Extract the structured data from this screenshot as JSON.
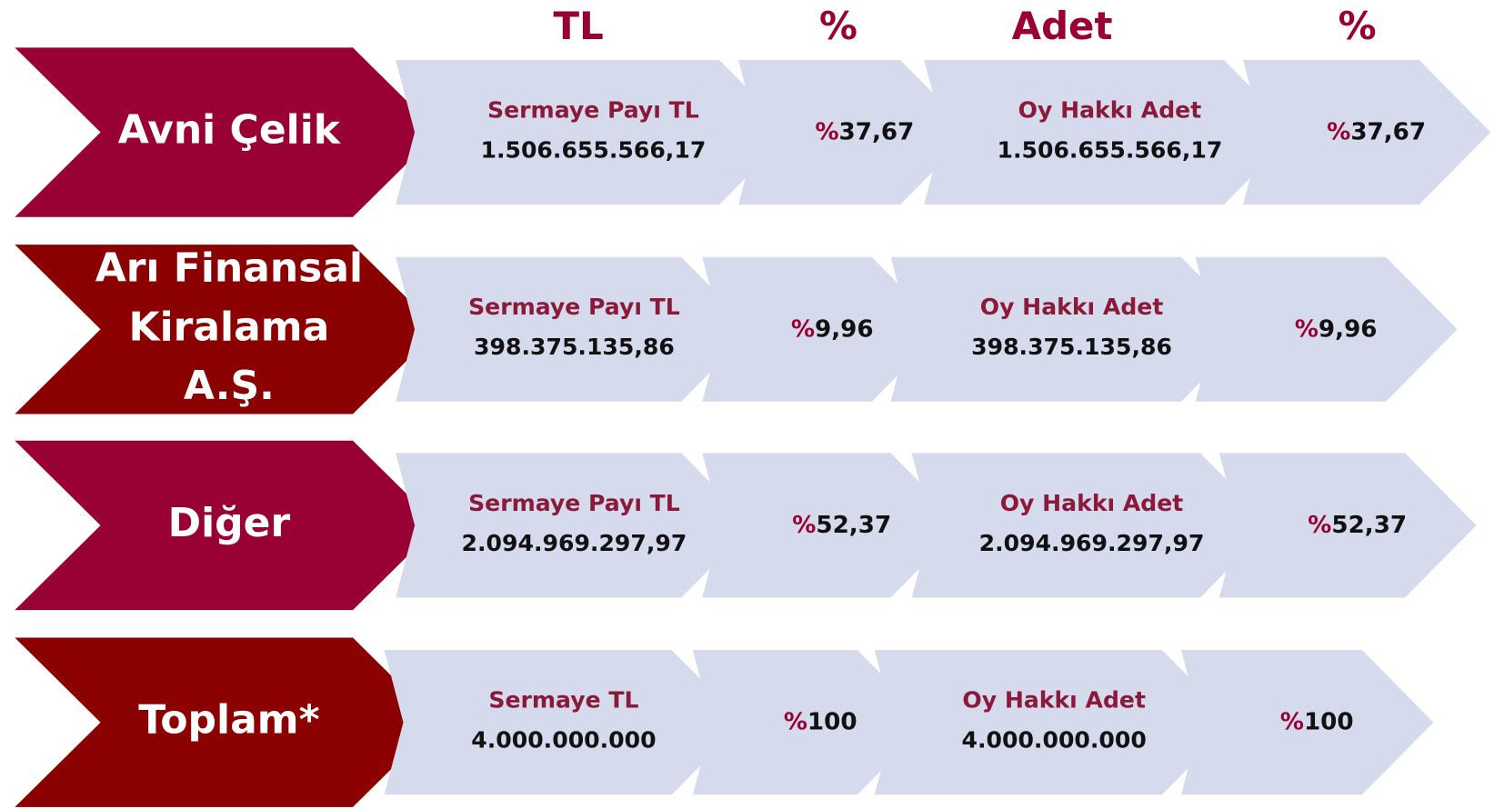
{
  "headers": [
    "TL",
    "%",
    "Adet",
    "%"
  ],
  "rows": [
    {
      "name": [
        "Avni Çelik"
      ],
      "capital_label": "Sermaye Payı TL",
      "capital_value": "1.506.655.566,17",
      "capital_percent": "%37,67",
      "vote_label": "Oy Hakkı Adet",
      "vote_value": "1.506.655.566,17",
      "vote_percent": "%37,67"
    },
    {
      "name": [
        "Arı Finansal",
        "Kiralama",
        "A.Ş."
      ],
      "capital_label": "Sermaye Payı TL",
      "capital_value": "398.375.135,86",
      "capital_percent": "%9,96",
      "vote_label": "Oy Hakkı Adet",
      "vote_value": "398.375.135,86",
      "vote_percent": "%9,96"
    },
    {
      "name": [
        "Diğer"
      ],
      "capital_label": "Sermaye Payı TL",
      "capital_value": "2.094.969.297,97",
      "capital_percent": "%52,37",
      "vote_label": "Oy Hakkı Adet",
      "vote_value": "2.094.969.297,97",
      "vote_percent": "%52,37"
    },
    {
      "name": [
        "Toplam*"
      ],
      "capital_label": "Sermaye TL",
      "capital_value": "4.000.000.000",
      "capital_percent": "%100",
      "vote_label": "Oy Hakkı Adet",
      "vote_value": "4.000.000.000",
      "vote_percent": "%100"
    }
  ]
}
